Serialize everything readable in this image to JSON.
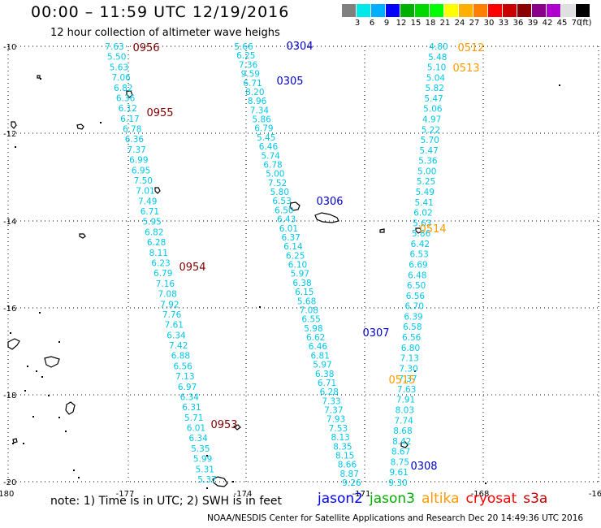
{
  "header": {
    "title": "00:00 – 11:59 UTC 12/19/2016",
    "subtitle": "12 hour collection of altimeter wave heighs"
  },
  "color_scale": {
    "colors": [
      "#808080",
      "#00e8e8",
      "#00b0ff",
      "#0000ff",
      "#00b000",
      "#00d800",
      "#00ff00",
      "#ffff00",
      "#ffb000",
      "#ff7f00",
      "#ff0000",
      "#c80000",
      "#8b0000",
      "#8b008b",
      "#b000d0",
      "#e0e0e0",
      "#000000"
    ],
    "labels": [
      "3",
      "6",
      "9",
      "12",
      "15",
      "18",
      "21",
      "24",
      "27",
      "30",
      "33",
      "36",
      "39",
      "42",
      "45",
      "70",
      "(ft)"
    ]
  },
  "axes": {
    "lon_labels": [
      "-180",
      "-177",
      "-174",
      "-171",
      "-168",
      "-16"
    ],
    "lat_labels": [
      "-10",
      "-12",
      "-14",
      "-16",
      "-18",
      "-20"
    ]
  },
  "tracks": [
    {
      "color": "#00c8e8",
      "values": [
        "7.63",
        "5.50",
        "5.63",
        "7.06",
        "6.82",
        "6.36",
        "6.12",
        "6.17",
        "6.78",
        "6.36",
        "7.37",
        "6.99",
        "6.95",
        "7.50",
        "7.01",
        "7.49",
        "6.71",
        "5.95",
        "6.82",
        "6.28",
        "8.11",
        "6.23",
        "6.79",
        "7.16",
        "7.08",
        "7.92",
        "7.76",
        "7.61",
        "6.34",
        "7.42",
        "6.88",
        "6.56",
        "7.13",
        "6.97",
        "6.34",
        "6.31",
        "5.71",
        "6.01",
        "6.34",
        "5.35",
        "5.99",
        "5.31",
        "5.37"
      ]
    },
    {
      "color": "#00c8e8",
      "values": [
        "5.66",
        "6.25",
        "7.36",
        "9.59",
        "6.71",
        "8.20",
        "8.96",
        "7.34",
        "5.86",
        "6.79",
        "5.45",
        "6.46",
        "5.74",
        "6.78",
        "5.00",
        "7.52",
        "5.80",
        "6.53",
        "6.50",
        "6.43",
        "6.01",
        "6.37",
        "6.14",
        "6.25",
        "6.10",
        "5.97",
        "6.38",
        "6.15",
        "5.68",
        "7.08",
        "6.55",
        "5.98",
        "6.62",
        "6.46",
        "6.81",
        "5.97",
        "6.38",
        "6.71",
        "6.28",
        "7.33",
        "7.37",
        "7.93",
        "7.53",
        "8.13",
        "8.35",
        "8.15",
        "8.66",
        "8.87",
        "9.26"
      ]
    },
    {
      "color": "#00c8e8",
      "values": [
        "4.80",
        "5.48",
        "5.10",
        "5.04",
        "5.82",
        "5.47",
        "5.06",
        "4.97",
        "5.22",
        "5.70",
        "5.47",
        "5.36",
        "5.00",
        "5.25",
        "5.49",
        "5.41",
        "6.02",
        "5.63",
        "5.86",
        "6.42",
        "6.53",
        "6.69",
        "6.48",
        "6.50",
        "6.56",
        "6.70",
        "6.39",
        "6.58",
        "6.56",
        "6.80",
        "7.13",
        "7.30",
        "7.37",
        "7.63",
        "7.91",
        "8.03",
        "7.74",
        "8.68",
        "8.42",
        "8.67",
        "8.75",
        "9.61",
        "9.30"
      ]
    }
  ],
  "pass_labels": [
    {
      "text": "0956",
      "color": "#800000"
    },
    {
      "text": "0955",
      "color": "#800000"
    },
    {
      "text": "0954",
      "color": "#800000"
    },
    {
      "text": "0953",
      "color": "#800000"
    },
    {
      "text": "0304",
      "color": "#0000c8"
    },
    {
      "text": "0305",
      "color": "#0000c8"
    },
    {
      "text": "0306",
      "color": "#0000c8"
    },
    {
      "text": "0307",
      "color": "#0000c8"
    },
    {
      "text": "0308",
      "color": "#0000c8"
    },
    {
      "text": "0512",
      "color": "#ff9900"
    },
    {
      "text": "0513",
      "color": "#ff9900"
    },
    {
      "text": "0514",
      "color": "#ff9900"
    },
    {
      "text": "0515",
      "color": "#ff9900"
    }
  ],
  "footer": {
    "note": "note: 1) Time is in UTC; 2) SWH is in feet",
    "legend": [
      {
        "name": "jason2",
        "color": "#0000ff"
      },
      {
        "name": "jason3",
        "color": "#00b000"
      },
      {
        "name": "altika",
        "color": "#ff9900"
      },
      {
        "name": "cryosat",
        "color": "#ff0000"
      },
      {
        "name": "s3a",
        "color": "#c80000"
      }
    ],
    "credit": "NOAA/NESDIS Center for Satellite Applications and Research    Dec 20 14:49:36 UTC 2016"
  }
}
